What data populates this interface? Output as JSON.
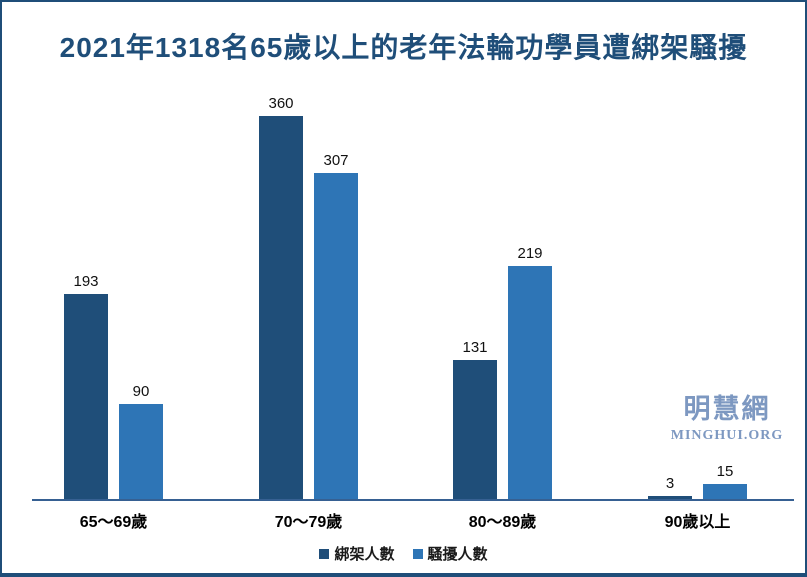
{
  "title": "2021年1318名65歲以上的老年法輪功學員遭綁架騷擾",
  "chart_data": {
    "type": "bar",
    "title": "2021年1318名65歲以上的老年法輪功學員遭綁架騷擾",
    "categories": [
      "65～69歲",
      "70～79歲",
      "80～89歲",
      "90歲以上"
    ],
    "series": [
      {
        "key": "kidnapped",
        "name": "綁架人數",
        "color": "#1F4E79",
        "values": [
          193,
          360,
          131,
          3
        ]
      },
      {
        "key": "harassed",
        "name": "騷擾人數",
        "color": "#2E75B6",
        "values": [
          90,
          307,
          219,
          15
        ]
      }
    ],
    "xlabel": "",
    "ylabel": "",
    "ylim": [
      0,
      380
    ],
    "grid": false,
    "legend_position": "bottom",
    "data_labels": true
  },
  "watermark": {
    "cjk": "明慧網",
    "latin": "MINGHUI.ORG"
  },
  "colors": {
    "title": "#1F4E79",
    "axis": "#366092",
    "frame_border": "#1F4E79",
    "watermark": "#7D98C1",
    "value_label": "#111111"
  }
}
